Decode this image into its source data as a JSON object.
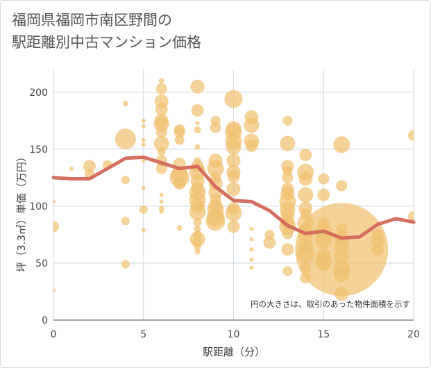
{
  "title_line1": "福岡県福岡市南区野間の",
  "title_line2": "駅距離別中古マンション価格",
  "chart_data": {
    "type": "scatter",
    "title": "福岡県福岡市南区野間の駅距離別中古マンション価格",
    "xlabel": "駅距離（分）",
    "ylabel": "坪（3.3㎡）単価（万円）",
    "xlim": [
      0,
      20
    ],
    "ylim": [
      0,
      220
    ],
    "xticks": [
      "0",
      "5",
      "10",
      "15",
      "20"
    ],
    "yticks": [
      "0",
      "50",
      "100",
      "150",
      "200"
    ],
    "grid": true,
    "annotation": "円の大きさは、取引のあった物件面積を示す",
    "colors": {
      "bubble": "#f0c070",
      "line": "#d2685a",
      "grid": "#ced9e2"
    },
    "series": [
      {
        "type": "bubble",
        "points": [
          {
            "x": 0,
            "y": 82,
            "s": 8
          },
          {
            "x": 0,
            "y": 104,
            "s": 3
          },
          {
            "x": 0,
            "y": 26,
            "s": 3
          },
          {
            "x": 1,
            "y": 133,
            "s": 3
          },
          {
            "x": 2,
            "y": 135,
            "s": 9
          },
          {
            "x": 2,
            "y": 128,
            "s": 7
          },
          {
            "x": 3,
            "y": 136,
            "s": 7
          },
          {
            "x": 4,
            "y": 159,
            "s": 15
          },
          {
            "x": 4,
            "y": 190,
            "s": 4
          },
          {
            "x": 4,
            "y": 123,
            "s": 6
          },
          {
            "x": 4,
            "y": 87,
            "s": 6
          },
          {
            "x": 4,
            "y": 49,
            "s": 6
          },
          {
            "x": 5,
            "y": 175,
            "s": 3
          },
          {
            "x": 5,
            "y": 170,
            "s": 3
          },
          {
            "x": 5,
            "y": 158,
            "s": 3
          },
          {
            "x": 5,
            "y": 154,
            "s": 3
          },
          {
            "x": 5,
            "y": 140,
            "s": 3
          },
          {
            "x": 5,
            "y": 116,
            "s": 3
          },
          {
            "x": 5,
            "y": 97,
            "s": 6
          },
          {
            "x": 5,
            "y": 79,
            "s": 3
          },
          {
            "x": 6,
            "y": 210,
            "s": 4
          },
          {
            "x": 6,
            "y": 203,
            "s": 8
          },
          {
            "x": 6,
            "y": 192,
            "s": 10
          },
          {
            "x": 6,
            "y": 185,
            "s": 9
          },
          {
            "x": 6,
            "y": 175,
            "s": 10
          },
          {
            "x": 6,
            "y": 172,
            "s": 11
          },
          {
            "x": 6,
            "y": 165,
            "s": 8
          },
          {
            "x": 6,
            "y": 155,
            "s": 11
          },
          {
            "x": 6,
            "y": 148,
            "s": 6
          },
          {
            "x": 6,
            "y": 140,
            "s": 8
          },
          {
            "x": 6,
            "y": 133,
            "s": 8
          },
          {
            "x": 6,
            "y": 110,
            "s": 3
          },
          {
            "x": 6,
            "y": 104,
            "s": 3
          },
          {
            "x": 6,
            "y": 98,
            "s": 4
          },
          {
            "x": 6,
            "y": 95,
            "s": 3
          },
          {
            "x": 7,
            "y": 167,
            "s": 8
          },
          {
            "x": 7,
            "y": 165,
            "s": 8
          },
          {
            "x": 7,
            "y": 158,
            "s": 7
          },
          {
            "x": 7,
            "y": 137,
            "s": 9
          },
          {
            "x": 7,
            "y": 128,
            "s": 12
          },
          {
            "x": 7,
            "y": 125,
            "s": 14
          },
          {
            "x": 7,
            "y": 120,
            "s": 9
          },
          {
            "x": 7,
            "y": 81,
            "s": 4
          },
          {
            "x": 8,
            "y": 205,
            "s": 10
          },
          {
            "x": 8,
            "y": 184,
            "s": 9
          },
          {
            "x": 8,
            "y": 173,
            "s": 3
          },
          {
            "x": 8,
            "y": 167,
            "s": 5
          },
          {
            "x": 8,
            "y": 152,
            "s": 4
          },
          {
            "x": 8,
            "y": 140,
            "s": 5
          },
          {
            "x": 8,
            "y": 135,
            "s": 9
          },
          {
            "x": 8,
            "y": 130,
            "s": 12
          },
          {
            "x": 8,
            "y": 122,
            "s": 10
          },
          {
            "x": 8,
            "y": 116,
            "s": 9
          },
          {
            "x": 8,
            "y": 112,
            "s": 12
          },
          {
            "x": 8,
            "y": 105,
            "s": 12
          },
          {
            "x": 8,
            "y": 100,
            "s": 10
          },
          {
            "x": 8,
            "y": 95,
            "s": 12
          },
          {
            "x": 8,
            "y": 86,
            "s": 6
          },
          {
            "x": 8,
            "y": 80,
            "s": 5
          },
          {
            "x": 8,
            "y": 75,
            "s": 6
          },
          {
            "x": 8,
            "y": 71,
            "s": 11
          },
          {
            "x": 8,
            "y": 69,
            "s": 7
          },
          {
            "x": 8,
            "y": 64,
            "s": 5
          },
          {
            "x": 8,
            "y": 60,
            "s": 4
          },
          {
            "x": 9,
            "y": 175,
            "s": 7
          },
          {
            "x": 9,
            "y": 169,
            "s": 8
          },
          {
            "x": 9,
            "y": 140,
            "s": 10
          },
          {
            "x": 9,
            "y": 133,
            "s": 12
          },
          {
            "x": 9,
            "y": 125,
            "s": 8
          },
          {
            "x": 9,
            "y": 120,
            "s": 10
          },
          {
            "x": 9,
            "y": 112,
            "s": 10
          },
          {
            "x": 9,
            "y": 106,
            "s": 8
          },
          {
            "x": 9,
            "y": 100,
            "s": 10
          },
          {
            "x": 9,
            "y": 97,
            "s": 12
          },
          {
            "x": 9,
            "y": 90,
            "s": 13
          },
          {
            "x": 9,
            "y": 87,
            "s": 14
          },
          {
            "x": 10,
            "y": 194,
            "s": 13
          },
          {
            "x": 10,
            "y": 168,
            "s": 11
          },
          {
            "x": 10,
            "y": 165,
            "s": 12
          },
          {
            "x": 10,
            "y": 157,
            "s": 12
          },
          {
            "x": 10,
            "y": 152,
            "s": 11
          },
          {
            "x": 10,
            "y": 140,
            "s": 10
          },
          {
            "x": 10,
            "y": 130,
            "s": 10
          },
          {
            "x": 10,
            "y": 126,
            "s": 9
          },
          {
            "x": 10,
            "y": 115,
            "s": 10
          },
          {
            "x": 10,
            "y": 98,
            "s": 9
          },
          {
            "x": 10,
            "y": 94,
            "s": 12
          },
          {
            "x": 10,
            "y": 82,
            "s": 9
          },
          {
            "x": 11,
            "y": 178,
            "s": 10
          },
          {
            "x": 11,
            "y": 171,
            "s": 11
          },
          {
            "x": 11,
            "y": 157,
            "s": 11
          },
          {
            "x": 11,
            "y": 153,
            "s": 9
          },
          {
            "x": 11,
            "y": 80,
            "s": 3
          },
          {
            "x": 11,
            "y": 71,
            "s": 3
          },
          {
            "x": 11,
            "y": 62,
            "s": 3
          },
          {
            "x": 11,
            "y": 53,
            "s": 3
          },
          {
            "x": 11,
            "y": 46,
            "s": 3
          },
          {
            "x": 12,
            "y": 75,
            "s": 7
          },
          {
            "x": 12,
            "y": 68,
            "s": 9
          },
          {
            "x": 13,
            "y": 175,
            "s": 7
          },
          {
            "x": 13,
            "y": 155,
            "s": 11
          },
          {
            "x": 13,
            "y": 135,
            "s": 9
          },
          {
            "x": 13,
            "y": 131,
            "s": 7
          },
          {
            "x": 13,
            "y": 125,
            "s": 8
          },
          {
            "x": 13,
            "y": 115,
            "s": 9
          },
          {
            "x": 13,
            "y": 111,
            "s": 10
          },
          {
            "x": 13,
            "y": 104,
            "s": 12
          },
          {
            "x": 13,
            "y": 97,
            "s": 11
          },
          {
            "x": 13,
            "y": 92,
            "s": 10
          },
          {
            "x": 13,
            "y": 86,
            "s": 10
          },
          {
            "x": 13,
            "y": 82,
            "s": 12
          },
          {
            "x": 13,
            "y": 76,
            "s": 8
          },
          {
            "x": 13,
            "y": 62,
            "s": 9
          },
          {
            "x": 13,
            "y": 43,
            "s": 7
          },
          {
            "x": 14,
            "y": 145,
            "s": 9
          },
          {
            "x": 14,
            "y": 130,
            "s": 12
          },
          {
            "x": 14,
            "y": 124,
            "s": 10
          },
          {
            "x": 14,
            "y": 110,
            "s": 11
          },
          {
            "x": 14,
            "y": 98,
            "s": 10
          },
          {
            "x": 14,
            "y": 93,
            "s": 8
          },
          {
            "x": 14,
            "y": 85,
            "s": 12
          },
          {
            "x": 14,
            "y": 80,
            "s": 9
          },
          {
            "x": 14,
            "y": 73,
            "s": 10
          },
          {
            "x": 14,
            "y": 65,
            "s": 11
          },
          {
            "x": 14,
            "y": 58,
            "s": 13
          },
          {
            "x": 14,
            "y": 46,
            "s": 8
          },
          {
            "x": 14,
            "y": 37,
            "s": 8
          },
          {
            "x": 15,
            "y": 124,
            "s": 8
          },
          {
            "x": 15,
            "y": 110,
            "s": 9
          },
          {
            "x": 15,
            "y": 85,
            "s": 8
          },
          {
            "x": 15,
            "y": 78,
            "s": 12
          },
          {
            "x": 15,
            "y": 70,
            "s": 12
          },
          {
            "x": 15,
            "y": 57,
            "s": 10
          },
          {
            "x": 15,
            "y": 52,
            "s": 12
          },
          {
            "x": 15,
            "y": 49,
            "s": 10
          },
          {
            "x": 16,
            "y": 154,
            "s": 12
          },
          {
            "x": 16,
            "y": 118,
            "s": 8
          },
          {
            "x": 16,
            "y": 62,
            "s": 67
          },
          {
            "x": 16,
            "y": 80,
            "s": 8
          },
          {
            "x": 16,
            "y": 72,
            "s": 10
          },
          {
            "x": 16,
            "y": 65,
            "s": 11
          },
          {
            "x": 16,
            "y": 56,
            "s": 11
          },
          {
            "x": 16,
            "y": 45,
            "s": 12
          },
          {
            "x": 16,
            "y": 40,
            "s": 11
          },
          {
            "x": 16,
            "y": 23,
            "s": 10
          },
          {
            "x": 18,
            "y": 75,
            "s": 8
          },
          {
            "x": 18,
            "y": 70,
            "s": 10
          },
          {
            "x": 18,
            "y": 62,
            "s": 9
          },
          {
            "x": 20,
            "y": 162,
            "s": 8
          },
          {
            "x": 20,
            "y": 91,
            "s": 8
          }
        ]
      },
      {
        "type": "line",
        "x": [
          0,
          1,
          2,
          3,
          4,
          5,
          6,
          7,
          8,
          9,
          10,
          11,
          12,
          13,
          14,
          15,
          16,
          17,
          18,
          19,
          20
        ],
        "y": [
          125,
          124,
          124,
          133,
          142,
          143,
          138,
          133,
          135,
          117,
          105,
          104,
          96,
          83,
          76,
          78,
          72,
          73,
          84,
          89,
          86
        ]
      }
    ]
  }
}
